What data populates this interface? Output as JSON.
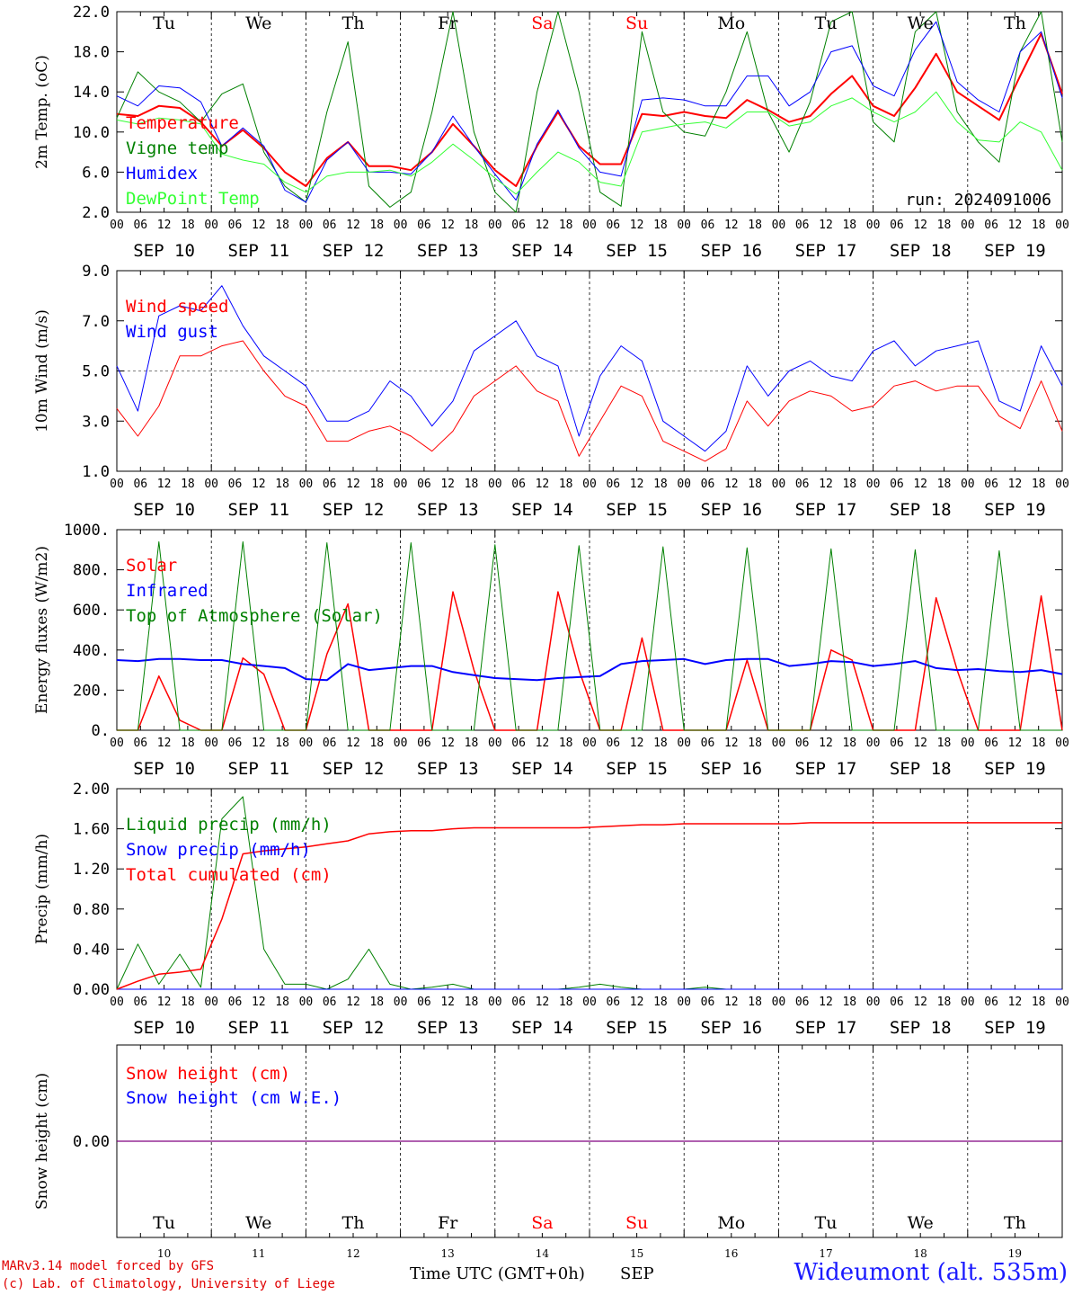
{
  "footer": {
    "model": "MARv3.14 model forced by GFS",
    "lab": "(c) Lab. of Climatology, University of Liege",
    "time_label": "Time UTC (GMT+0h)",
    "month": "SEP",
    "station": "Wideumont (alt. 535m)"
  },
  "run_label": "run: 2024091006",
  "day_names": [
    "Tu",
    "We",
    "Th",
    "Fr",
    "Sa",
    "Su",
    "Mo",
    "Tu",
    "We",
    "Th"
  ],
  "day_name_colors": [
    "#000000",
    "#000000",
    "#000000",
    "#000000",
    "#ff0000",
    "#ff0000",
    "#000000",
    "#000000",
    "#000000",
    "#000000"
  ],
  "date_labels": [
    "SEP 10",
    "SEP 11",
    "SEP 12",
    "SEP 13",
    "SEP 14",
    "SEP 15",
    "SEP 16",
    "SEP 17",
    "SEP 18",
    "SEP 19"
  ],
  "day_numbers": [
    "10",
    "11",
    "12",
    "13",
    "14",
    "15",
    "16",
    "17",
    "18",
    "19"
  ],
  "hour_ticks": [
    "00",
    "06",
    "12",
    "18"
  ],
  "chart_data": [
    {
      "type": "line",
      "ylabel": "2m Temp. (oC)",
      "ylim": [
        2.0,
        22.0
      ],
      "yticks": [
        "2.0",
        "6.0",
        "10.0",
        "14.0",
        "18.0",
        "22.0"
      ],
      "x_step_hours": 6,
      "series": [
        {
          "name": "Temperature",
          "color": "#ff0000",
          "width": 2,
          "values": [
            11.8,
            11.6,
            12.6,
            12.4,
            11.0,
            8.6,
            10.2,
            8.4,
            6.0,
            4.6,
            7.4,
            9.0,
            6.6,
            6.6,
            6.2,
            8.0,
            10.8,
            8.6,
            6.2,
            4.6,
            8.6,
            12.0,
            8.6,
            6.8,
            6.8,
            11.8,
            11.6,
            12.0,
            11.6,
            11.4,
            13.2,
            12.2,
            11.0,
            11.6,
            13.8,
            15.6,
            12.6,
            11.6,
            14.4,
            17.8,
            14.0,
            12.6,
            11.2,
            15.6,
            19.8,
            13.8
          ]
        },
        {
          "name": "Vigne temp",
          "color": "#008000",
          "width": 1,
          "values": [
            11.4,
            16.0,
            14.0,
            13.0,
            11.0,
            13.8,
            14.8,
            8.0,
            4.6,
            3.0,
            12.0,
            19.0,
            4.6,
            2.5,
            4.0,
            12.0,
            22.0,
            10.0,
            4.0,
            2.0,
            14.0,
            22.0,
            14.0,
            4.0,
            2.6,
            20.0,
            12.0,
            10.0,
            9.6,
            14.0,
            20.0,
            12.0,
            8.0,
            13.0,
            21.0,
            24.0,
            11.0,
            9.0,
            20.0,
            24.0,
            12.0,
            9.0,
            7.0,
            18.0,
            25.0,
            9.0
          ]
        },
        {
          "name": "Humidex",
          "color": "#0000ff",
          "width": 1,
          "values": [
            13.6,
            12.6,
            14.6,
            14.4,
            13.0,
            8.6,
            10.4,
            8.6,
            4.2,
            3.0,
            7.2,
            9.0,
            6.0,
            6.0,
            5.8,
            8.0,
            11.6,
            8.6,
            5.8,
            3.2,
            8.8,
            12.2,
            8.4,
            6.0,
            5.6,
            13.2,
            13.4,
            13.2,
            12.6,
            12.6,
            15.6,
            15.6,
            12.6,
            14.0,
            18.0,
            18.6,
            14.6,
            13.6,
            18.2,
            21.0,
            15.0,
            13.2,
            12.0,
            18.0,
            20.0,
            13.4
          ]
        },
        {
          "name": "DewPoint Temp",
          "color": "#33ff33",
          "width": 1,
          "values": [
            11.2,
            10.8,
            11.4,
            11.2,
            10.8,
            7.8,
            7.2,
            6.8,
            5.0,
            4.0,
            5.6,
            6.0,
            6.0,
            6.2,
            5.6,
            7.0,
            8.8,
            7.2,
            5.4,
            3.8,
            6.0,
            8.0,
            7.0,
            5.0,
            4.6,
            10.0,
            10.4,
            10.8,
            11.0,
            10.4,
            12.0,
            12.0,
            10.6,
            11.0,
            12.6,
            13.4,
            12.0,
            11.0,
            12.0,
            14.0,
            11.0,
            9.2,
            9.0,
            11.0,
            10.0,
            6.2
          ]
        }
      ]
    },
    {
      "type": "line",
      "ylabel": "10m Wind (m/s)",
      "ylim": [
        1.0,
        9.0
      ],
      "yticks": [
        "1.0",
        "3.0",
        "5.0",
        "7.0",
        "9.0"
      ],
      "reference_line": 5.0,
      "x_step_hours": 6,
      "series": [
        {
          "name": "Wind speed",
          "color": "#ff0000",
          "width": 1,
          "values": [
            3.5,
            2.4,
            3.6,
            5.6,
            5.6,
            6.0,
            6.2,
            5.0,
            4.0,
            3.6,
            2.2,
            2.2,
            2.6,
            2.8,
            2.4,
            1.8,
            2.6,
            4.0,
            4.6,
            5.2,
            4.2,
            3.8,
            1.6,
            3.0,
            4.4,
            4.0,
            2.2,
            1.8,
            1.4,
            1.9,
            3.8,
            2.8,
            3.8,
            4.2,
            4.0,
            3.4,
            3.6,
            4.4,
            4.6,
            4.2,
            4.4,
            4.4,
            3.2,
            2.7,
            4.6,
            2.6
          ]
        },
        {
          "name": "Wind gust",
          "color": "#0000ff",
          "width": 1,
          "values": [
            5.2,
            3.4,
            7.2,
            7.6,
            7.4,
            8.4,
            6.8,
            5.6,
            5.0,
            4.4,
            3.0,
            3.0,
            3.4,
            4.6,
            4.0,
            2.8,
            3.8,
            5.8,
            6.4,
            7.0,
            5.6,
            5.2,
            2.4,
            4.8,
            6.0,
            5.4,
            3.0,
            2.4,
            1.8,
            2.6,
            5.2,
            4.0,
            5.0,
            5.4,
            4.8,
            4.6,
            5.8,
            6.2,
            5.2,
            5.8,
            6.0,
            6.2,
            3.8,
            3.4,
            6.0,
            4.4
          ]
        }
      ]
    },
    {
      "type": "line",
      "ylabel": "Energy fluxes (W/m2)",
      "ylim": [
        0,
        1000
      ],
      "yticks": [
        "0.",
        "200.",
        "400.",
        "600.",
        "800.",
        "1000."
      ],
      "x_step_hours": 6,
      "series": [
        {
          "name": "Solar",
          "color": "#ff0000",
          "width": 1.5,
          "values": [
            0,
            0,
            270,
            50,
            0,
            0,
            360,
            280,
            0,
            0,
            380,
            630,
            0,
            0,
            0,
            0,
            690,
            300,
            0,
            0,
            0,
            690,
            300,
            0,
            0,
            460,
            0,
            0,
            0,
            0,
            350,
            0,
            0,
            0,
            400,
            350,
            0,
            0,
            0,
            660,
            300,
            0,
            0,
            0,
            670,
            0
          ]
        },
        {
          "name": "Infrared",
          "color": "#0000ff",
          "width": 2,
          "values": [
            350,
            345,
            355,
            355,
            350,
            350,
            330,
            320,
            310,
            255,
            250,
            330,
            300,
            310,
            320,
            320,
            290,
            275,
            260,
            255,
            250,
            260,
            265,
            270,
            330,
            345,
            350,
            355,
            330,
            350,
            355,
            355,
            320,
            330,
            345,
            340,
            320,
            330,
            345,
            310,
            300,
            305,
            295,
            290,
            300,
            280
          ]
        },
        {
          "name": "Top of Atmosphere (Solar)",
          "color": "#008000",
          "width": 1,
          "values": [
            0,
            0,
            940,
            0,
            0,
            0,
            940,
            0,
            0,
            0,
            935,
            0,
            0,
            0,
            935,
            0,
            0,
            0,
            925,
            0,
            0,
            0,
            920,
            0,
            0,
            0,
            915,
            0,
            0,
            0,
            910,
            0,
            0,
            0,
            905,
            0,
            0,
            0,
            900,
            0,
            0,
            0,
            895,
            0,
            0,
            0
          ]
        }
      ]
    },
    {
      "type": "line",
      "ylabel": "Precip (mm/h)",
      "ylim": [
        0.0,
        2.0
      ],
      "yticks": [
        "0.00",
        "0.40",
        "0.80",
        "1.20",
        "1.60",
        "2.00"
      ],
      "x_step_hours": 6,
      "series": [
        {
          "name": "Liquid precip (mm/h)",
          "color": "#008000",
          "width": 1,
          "values": [
            0.0,
            0.45,
            0.05,
            0.35,
            0.02,
            1.7,
            1.92,
            0.4,
            0.05,
            0.05,
            0.0,
            0.1,
            0.4,
            0.05,
            0.0,
            0.02,
            0.05,
            0.0,
            0.0,
            0.0,
            0.0,
            0.0,
            0.02,
            0.05,
            0.02,
            0.0,
            0.0,
            0.0,
            0.02,
            0.0,
            0.0,
            0.0,
            0.0,
            0.0,
            0.0,
            0.0,
            0.0,
            0.0,
            0.0,
            0.0,
            0.0,
            0.0,
            0.0,
            0.0,
            0.0,
            0.0
          ]
        },
        {
          "name": "Snow precip (mm/h)",
          "color": "#0000ff",
          "width": 1,
          "values": [
            0,
            0,
            0,
            0,
            0,
            0,
            0,
            0,
            0,
            0,
            0,
            0,
            0,
            0,
            0,
            0,
            0,
            0,
            0,
            0,
            0,
            0,
            0,
            0,
            0,
            0,
            0,
            0,
            0,
            0,
            0,
            0,
            0,
            0,
            0,
            0,
            0,
            0,
            0,
            0,
            0,
            0,
            0,
            0,
            0,
            0
          ]
        },
        {
          "name": "Total cumulated (cm)",
          "color": "#ff0000",
          "width": 1.5,
          "values": [
            0.0,
            0.08,
            0.15,
            0.17,
            0.2,
            0.7,
            1.35,
            1.38,
            1.4,
            1.42,
            1.45,
            1.48,
            1.55,
            1.57,
            1.58,
            1.58,
            1.6,
            1.61,
            1.61,
            1.61,
            1.61,
            1.61,
            1.61,
            1.62,
            1.63,
            1.64,
            1.64,
            1.65,
            1.65,
            1.65,
            1.65,
            1.65,
            1.65,
            1.66,
            1.66,
            1.66,
            1.66,
            1.66,
            1.66,
            1.66,
            1.66,
            1.66,
            1.66,
            1.66,
            1.66,
            1.66
          ]
        }
      ]
    },
    {
      "type": "line",
      "ylabel": "Snow height (cm)",
      "ylim": [
        -1.0,
        1.0
      ],
      "yticks": [
        "0.00"
      ],
      "x_step_hours": 6,
      "series": [
        {
          "name": "Snow height (cm)",
          "color": "#ff0000",
          "width": 1,
          "values": [
            0,
            0,
            0,
            0,
            0,
            0,
            0,
            0,
            0,
            0,
            0,
            0,
            0,
            0,
            0,
            0,
            0,
            0,
            0,
            0,
            0,
            0,
            0,
            0,
            0,
            0,
            0,
            0,
            0,
            0,
            0,
            0,
            0,
            0,
            0,
            0,
            0,
            0,
            0,
            0,
            0,
            0,
            0,
            0,
            0,
            0
          ]
        },
        {
          "name": "Snow height (cm W.E.)",
          "color": "#0000ff",
          "width": 1,
          "values": [
            0,
            0,
            0,
            0,
            0,
            0,
            0,
            0,
            0,
            0,
            0,
            0,
            0,
            0,
            0,
            0,
            0,
            0,
            0,
            0,
            0,
            0,
            0,
            0,
            0,
            0,
            0,
            0,
            0,
            0,
            0,
            0,
            0,
            0,
            0,
            0,
            0,
            0,
            0,
            0,
            0,
            0,
            0,
            0,
            0,
            0
          ]
        }
      ]
    }
  ]
}
